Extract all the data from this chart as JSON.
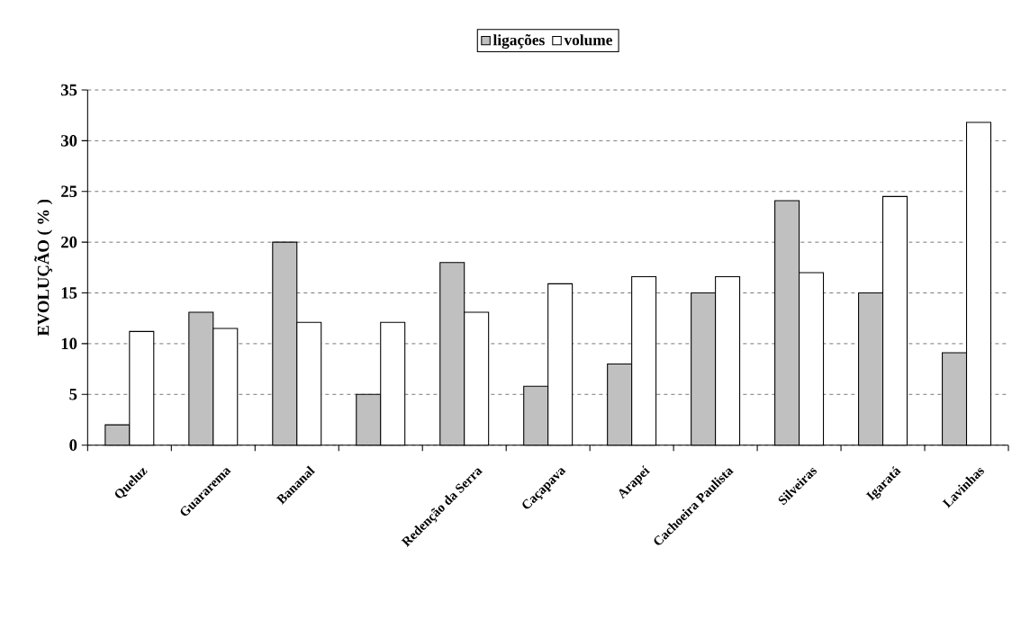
{
  "chart_data": {
    "type": "bar",
    "ylabel": "EVOLUÇÃO ( % )",
    "categories": [
      "Queluz",
      "Guararema",
      "Bananal",
      null,
      "Redenção da Serra",
      "Caçapava",
      "Arapeí",
      "Cachoeira Paulista",
      "Silveiras",
      "Igaratá",
      "Lavinhas"
    ],
    "series": [
      {
        "name": "ligações",
        "color": "#c0c0c0",
        "values": [
          2,
          13.1,
          20,
          5,
          18,
          5.8,
          8,
          15,
          24.1,
          15,
          9.1
        ]
      },
      {
        "name": "volume",
        "color": "#ffffff",
        "values": [
          11.2,
          11.5,
          12.1,
          12.1,
          13.1,
          15.9,
          16.6,
          16.6,
          17,
          24.5,
          31.8
        ]
      }
    ],
    "ylim": [
      0,
      35
    ],
    "yticks": [
      0,
      5,
      10,
      15,
      20,
      25,
      30,
      35
    ],
    "grid": "y",
    "legend": "top"
  }
}
